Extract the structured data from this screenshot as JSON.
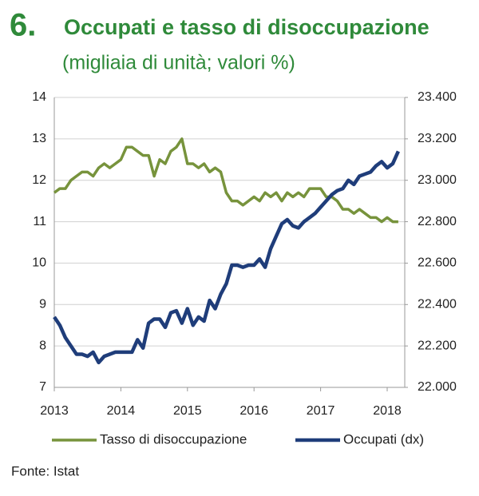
{
  "number": "6.",
  "chart_data": {
    "type": "line",
    "title": "Occupati e tasso di disoccupazione",
    "subtitle": "(migliaia di unità; valori %)",
    "categories": [
      "2013",
      null,
      null,
      null,
      null,
      null,
      null,
      null,
      null,
      null,
      null,
      null,
      "2014",
      null,
      null,
      null,
      null,
      null,
      null,
      null,
      null,
      null,
      null,
      null,
      "2015",
      null,
      null,
      null,
      null,
      null,
      null,
      null,
      null,
      null,
      null,
      null,
      "2016",
      null,
      null,
      null,
      null,
      null,
      null,
      null,
      null,
      null,
      null,
      null,
      "2017",
      null,
      null,
      null,
      null,
      null,
      null,
      null,
      null,
      null,
      null,
      null,
      "2018",
      null,
      null
    ],
    "series": [
      {
        "name": "Tasso di disoccupazione",
        "color": "#77933c",
        "values": [
          11.7,
          11.8,
          11.8,
          12.0,
          12.1,
          12.2,
          12.2,
          12.1,
          12.3,
          12.4,
          12.3,
          12.4,
          12.5,
          12.8,
          12.8,
          12.7,
          12.6,
          12.6,
          12.1,
          12.5,
          12.4,
          12.7,
          12.8,
          13.0,
          12.4,
          12.4,
          12.3,
          12.4,
          12.2,
          12.3,
          12.2,
          11.7,
          11.5,
          11.5,
          11.4,
          11.5,
          11.6,
          11.5,
          11.7,
          11.6,
          11.7,
          11.5,
          11.7,
          11.6,
          11.7,
          11.6,
          11.8,
          11.8,
          11.8,
          11.6,
          11.6,
          11.5,
          11.3,
          11.3,
          11.2,
          11.3,
          11.2,
          11.1,
          11.1,
          11.0,
          11.1,
          11.0,
          11.0
        ]
      },
      {
        "name": "Occupati (dx)",
        "color": "#1f3d7a",
        "axis": "y2",
        "values": [
          22340,
          22300,
          22240,
          22200,
          22160,
          22160,
          22150,
          22170,
          22120,
          22150,
          22160,
          22170,
          22170,
          22170,
          22170,
          22230,
          22190,
          22310,
          22330,
          22330,
          22290,
          22360,
          22370,
          22310,
          22380,
          22300,
          22340,
          22320,
          22420,
          22380,
          22450,
          22500,
          22590,
          22590,
          22580,
          22590,
          22590,
          22620,
          22580,
          22670,
          22730,
          22790,
          22810,
          22780,
          22770,
          22800,
          22820,
          22840,
          22870,
          22900,
          22930,
          22950,
          22960,
          23000,
          22980,
          23020,
          23030,
          23040,
          23070,
          23090,
          23060,
          23080,
          23140
        ]
      }
    ],
    "ylim": [
      7,
      14
    ],
    "yticks": [
      7,
      8,
      9,
      10,
      11,
      12,
      13,
      14
    ],
    "y2lim": [
      22000,
      23400
    ],
    "y2ticks": [
      {
        "value": 22000,
        "label": "22.000"
      },
      {
        "value": 22200,
        "label": "22.200"
      },
      {
        "value": 22400,
        "label": "22.400"
      },
      {
        "value": 22600,
        "label": "22.600"
      },
      {
        "value": 22800,
        "label": "22.800"
      },
      {
        "value": 23000,
        "label": "23.000"
      },
      {
        "value": 23200,
        "label": "23.200"
      },
      {
        "value": 23400,
        "label": "23.400"
      }
    ],
    "grid": true,
    "source": "Fonte: Istat"
  }
}
